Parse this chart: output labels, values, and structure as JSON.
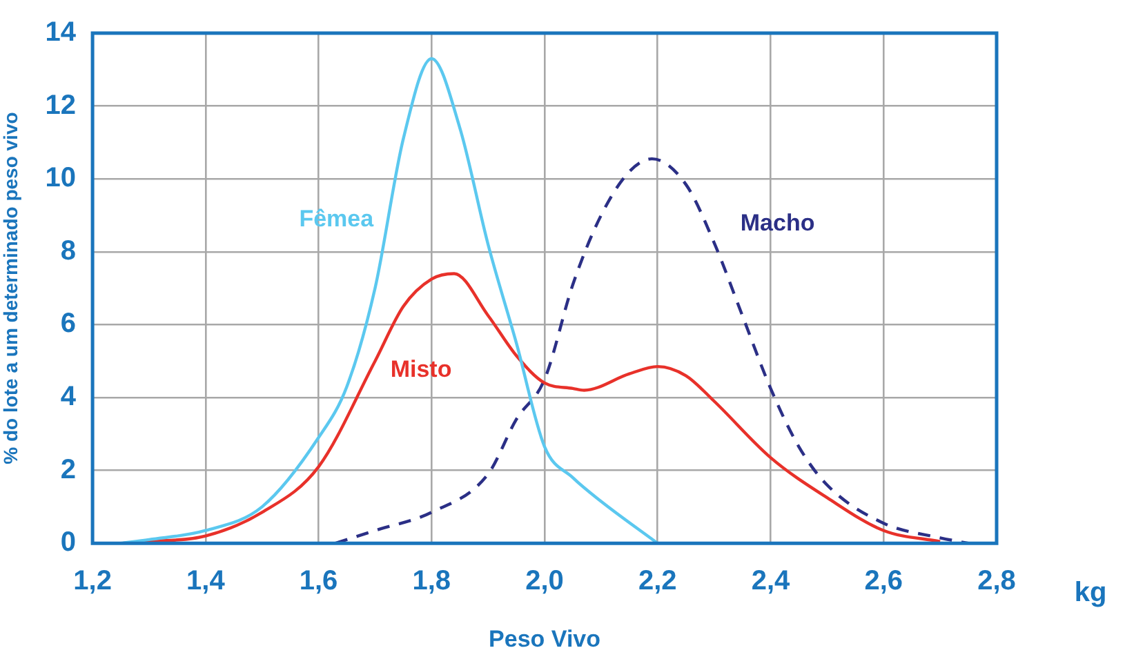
{
  "chart_data": {
    "type": "line",
    "xlabel": "Peso Vivo",
    "ylabel": "% do lote a um determinado peso vivo",
    "annotations": [
      "kg"
    ],
    "xlim": [
      1.2,
      2.8
    ],
    "xticks": [
      {
        "value": 1.2,
        "label": "1,2"
      },
      {
        "value": 1.4,
        "label": "1,4"
      },
      {
        "value": 1.6,
        "label": "1,6"
      },
      {
        "value": 1.8,
        "label": "1,8"
      },
      {
        "value": 2.0,
        "label": "2,0"
      },
      {
        "value": 2.2,
        "label": "2,2"
      },
      {
        "value": 2.4,
        "label": "2,4"
      },
      {
        "value": 2.6,
        "label": "2,6"
      },
      {
        "value": 2.8,
        "label": "2,8"
      }
    ],
    "ylim": [
      0,
      14
    ],
    "yticks": [
      0,
      2,
      4,
      6,
      8,
      10,
      12,
      14
    ],
    "grid": true,
    "legend": false,
    "marker": "none",
    "series": [
      {
        "name": "Fêmea",
        "color": "#5bc8ef",
        "line_style": "solid",
        "x": [
          1.25,
          1.3,
          1.4,
          1.5,
          1.6,
          1.65,
          1.7,
          1.75,
          1.8,
          1.85,
          1.9,
          1.95,
          2.0,
          2.05,
          2.1,
          2.2
        ],
        "values": [
          0,
          0.1,
          0.35,
          1.0,
          2.9,
          4.3,
          7.0,
          11.1,
          13.3,
          11.4,
          8.2,
          5.5,
          2.65,
          1.8,
          1.15,
          0
        ]
      },
      {
        "name": "Misto",
        "color": "#e8312a",
        "line_style": "solid",
        "x": [
          1.25,
          1.3,
          1.4,
          1.5,
          1.6,
          1.7,
          1.75,
          1.8,
          1.84,
          1.9,
          1.95,
          2.0,
          2.05,
          2.07,
          2.15,
          2.2,
          2.25,
          2.3,
          2.4,
          2.5,
          2.6,
          2.7
        ],
        "values": [
          0,
          0.05,
          0.2,
          0.85,
          2.1,
          5.0,
          6.5,
          7.25,
          7.4,
          6.25,
          5.15,
          4.4,
          4.25,
          4.2,
          4.65,
          4.85,
          4.6,
          3.9,
          2.35,
          1.25,
          0.35,
          0.05
        ]
      },
      {
        "name": "Macho",
        "color": "#2b2f86",
        "line_style": "dashed",
        "x": [
          1.63,
          1.7,
          1.8,
          1.9,
          1.95,
          2.0,
          2.05,
          2.1,
          2.15,
          2.19,
          2.25,
          2.3,
          2.35,
          2.4,
          2.45,
          2.5,
          2.6,
          2.7,
          2.75
        ],
        "values": [
          0,
          0.35,
          0.85,
          1.9,
          3.4,
          4.5,
          7.1,
          9.0,
          10.2,
          10.55,
          9.85,
          8.25,
          6.25,
          4.25,
          2.65,
          1.6,
          0.55,
          0.15,
          0
        ]
      }
    ]
  }
}
